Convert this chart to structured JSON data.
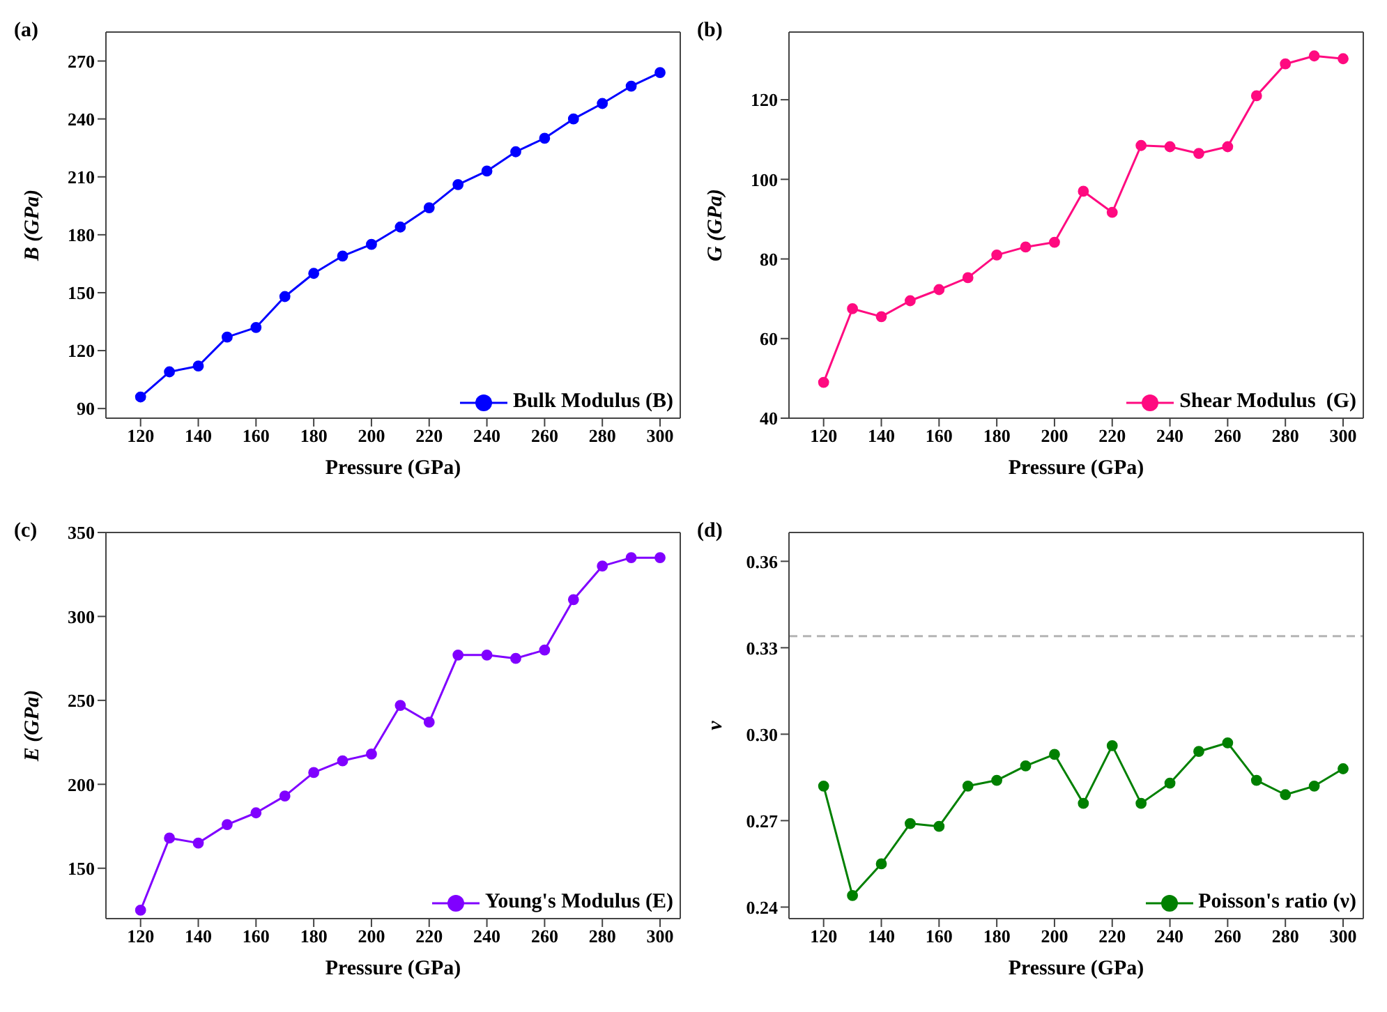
{
  "chart_data": [
    {
      "type": "line",
      "title": "(a)",
      "xlabel": "Pressure (GPa)",
      "ylabel": "B (GPa)",
      "x": [
        120,
        130,
        140,
        150,
        160,
        170,
        180,
        190,
        200,
        210,
        220,
        230,
        240,
        250,
        260,
        270,
        280,
        290,
        300
      ],
      "xlim": [
        108,
        307
      ],
      "xticks": [
        120,
        140,
        160,
        180,
        200,
        220,
        240,
        260,
        280,
        300
      ],
      "ylim": [
        85,
        285
      ],
      "yticks": [
        90,
        120,
        150,
        180,
        210,
        240,
        270
      ],
      "marker": "circle",
      "line_style": "solid",
      "legend": "bottom right",
      "grid": false,
      "series": [
        {
          "name": "Bulk Modulus (B)",
          "color": "#0000ff",
          "values": [
            96,
            109,
            112,
            127,
            132,
            148,
            160,
            169,
            175,
            184,
            194,
            206,
            213,
            223,
            230,
            240,
            248,
            257,
            264
          ]
        }
      ]
    },
    {
      "type": "line",
      "title": "(b)",
      "xlabel": "Pressure (GPa)",
      "ylabel": "G (GPa)",
      "x": [
        120,
        130,
        140,
        150,
        160,
        170,
        180,
        190,
        200,
        210,
        220,
        230,
        240,
        250,
        260,
        270,
        280,
        290,
        300
      ],
      "xlim": [
        108,
        307
      ],
      "xticks": [
        120,
        140,
        160,
        180,
        200,
        220,
        240,
        260,
        280,
        300
      ],
      "ylim": [
        40,
        137
      ],
      "yticks": [
        40,
        60,
        80,
        100,
        120
      ],
      "marker": "circle",
      "line_style": "solid",
      "legend": "bottom right",
      "grid": false,
      "series": [
        {
          "name": "Shear Modulus  (G)",
          "color": "#ff0a80",
          "values": [
            49,
            67.5,
            65.5,
            69.5,
            72.3,
            75.3,
            81,
            83,
            84.2,
            97,
            91.7,
            108.5,
            108.2,
            106.5,
            108.2,
            121,
            129,
            131,
            130.3
          ]
        }
      ]
    },
    {
      "type": "line",
      "title": "(c)",
      "xlabel": "Pressure (GPa)",
      "ylabel": "E (GPa)",
      "x": [
        120,
        130,
        140,
        150,
        160,
        170,
        180,
        190,
        200,
        210,
        220,
        230,
        240,
        250,
        260,
        270,
        280,
        290,
        300
      ],
      "xlim": [
        108,
        307
      ],
      "xticks": [
        120,
        140,
        160,
        180,
        200,
        220,
        240,
        260,
        280,
        300
      ],
      "ylim": [
        120,
        350
      ],
      "yticks": [
        150,
        200,
        250,
        300,
        350
      ],
      "marker": "circle",
      "line_style": "solid",
      "legend": "bottom right",
      "grid": false,
      "series": [
        {
          "name": "Young's Modulus (E)",
          "color": "#8000ff",
          "values": [
            125,
            168,
            165,
            176,
            183,
            193,
            207,
            214,
            218,
            247,
            237,
            277,
            277,
            275,
            280,
            310,
            330,
            335,
            335
          ]
        }
      ]
    },
    {
      "type": "line",
      "title": "(d)",
      "xlabel": "Pressure (GPa)",
      "ylabel": "ν",
      "x": [
        120,
        130,
        140,
        150,
        160,
        170,
        180,
        190,
        200,
        210,
        220,
        230,
        240,
        250,
        260,
        270,
        280,
        290,
        300
      ],
      "xlim": [
        108,
        307
      ],
      "xticks": [
        120,
        140,
        160,
        180,
        200,
        220,
        240,
        260,
        280,
        300
      ],
      "ylim": [
        0.236,
        0.37
      ],
      "yticks": [
        0.24,
        0.27,
        {
          "value": 0.3,
          "label": "0.30"
        },
        0.33,
        0.36
      ],
      "marker": "circle",
      "line_style": "solid",
      "legend": "bottom right",
      "grid": false,
      "ref_lines": [
        {
          "axis": "y",
          "value": 0.334,
          "color": "#b4b4b4",
          "line_style": "dashed"
        }
      ],
      "series": [
        {
          "name": "Poisson's ratio (ν)",
          "color": "#008000",
          "values": [
            0.282,
            0.244,
            0.255,
            0.269,
            0.268,
            0.282,
            0.284,
            0.289,
            0.293,
            0.276,
            0.296,
            0.276,
            0.283,
            0.294,
            0.297,
            0.284,
            0.279,
            0.282,
            0.288
          ]
        }
      ]
    }
  ]
}
